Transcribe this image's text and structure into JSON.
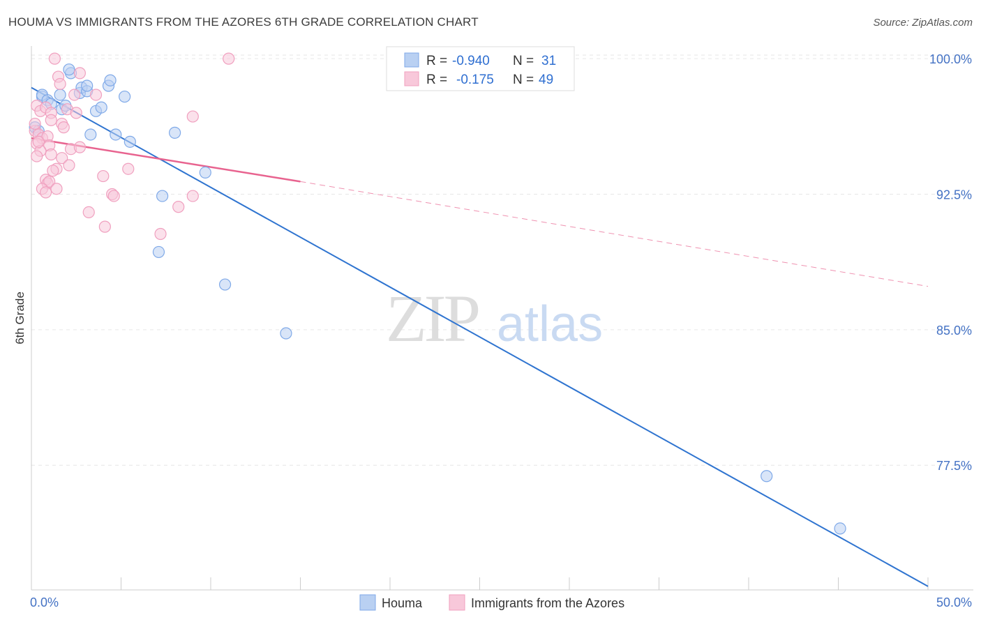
{
  "chart_data": {
    "type": "scatter",
    "title": "HOUMA VS IMMIGRANTS FROM THE AZORES 6TH GRADE CORRELATION CHART",
    "source": "Source: ZipAtlas.com",
    "ylabel": "6th Grade",
    "xlabel": "",
    "xlim": [
      0,
      50
    ],
    "ylim": [
      70.6,
      100.7
    ],
    "x_tick_labels": [
      "0.0%",
      "50.0%"
    ],
    "y_ticks": [
      {
        "value": 100.0,
        "label": "100.0%"
      },
      {
        "value": 92.5,
        "label": "92.5%"
      },
      {
        "value": 85.0,
        "label": "85.0%"
      },
      {
        "value": 77.5,
        "label": "77.5%"
      }
    ],
    "x_minor_ticks": [
      0,
      5,
      10,
      15,
      20,
      25,
      30,
      35,
      40,
      45,
      50
    ],
    "watermark": {
      "zip": "ZIP",
      "atlas": "atlas"
    },
    "legend": {
      "r_label": "R =",
      "n_label": "N =",
      "entries": [
        {
          "r": "-0.940",
          "n": "31"
        },
        {
          "r": "-0.175",
          "n": "49"
        }
      ]
    },
    "series": [
      {
        "name": "Houma",
        "color": "#7fa9e8",
        "fill": "#b9d0f2",
        "line_color": "#2f74d0",
        "trend": {
          "x0": 0.0,
          "y0": 98.4,
          "x1": 50.0,
          "y1": 70.8,
          "dashed_extension": false
        },
        "points": [
          [
            0.6,
            97.9
          ],
          [
            0.6,
            98.0
          ],
          [
            0.9,
            97.7
          ],
          [
            1.1,
            97.5
          ],
          [
            1.6,
            98.0
          ],
          [
            1.7,
            97.2
          ],
          [
            1.9,
            97.4
          ],
          [
            2.2,
            99.2
          ],
          [
            2.1,
            99.4
          ],
          [
            2.7,
            98.1
          ],
          [
            2.8,
            98.4
          ],
          [
            3.1,
            98.2
          ],
          [
            3.1,
            98.5
          ],
          [
            3.6,
            97.1
          ],
          [
            3.9,
            97.3
          ],
          [
            4.3,
            98.5
          ],
          [
            4.4,
            98.8
          ],
          [
            5.2,
            97.9
          ],
          [
            3.3,
            95.8
          ],
          [
            4.7,
            95.8
          ],
          [
            5.5,
            95.4
          ],
          [
            8.0,
            95.9
          ],
          [
            7.3,
            92.4
          ],
          [
            7.1,
            89.3
          ],
          [
            9.7,
            93.7
          ],
          [
            10.8,
            87.5
          ],
          [
            14.2,
            84.8
          ],
          [
            41.0,
            76.9
          ],
          [
            45.1,
            74.0
          ],
          [
            0.2,
            96.2
          ],
          [
            0.4,
            96.0
          ]
        ]
      },
      {
        "name": "Immigrants from the Azores",
        "color": "#f0a0bf",
        "fill": "#f8c8da",
        "line_color": "#e8638f",
        "trend": {
          "x0": 0.0,
          "y0": 95.6,
          "x1": 15.0,
          "y1": 93.2,
          "x2": 50.0,
          "y2": 87.4,
          "dashed_extension": true
        },
        "points": [
          [
            1.3,
            100.0
          ],
          [
            11.0,
            100.0
          ],
          [
            2.7,
            99.2
          ],
          [
            1.5,
            99.0
          ],
          [
            1.6,
            98.6
          ],
          [
            2.4,
            98.0
          ],
          [
            0.3,
            97.4
          ],
          [
            0.5,
            97.1
          ],
          [
            0.8,
            97.3
          ],
          [
            1.1,
            97.0
          ],
          [
            2.0,
            97.2
          ],
          [
            1.7,
            96.4
          ],
          [
            1.8,
            96.2
          ],
          [
            0.2,
            96.0
          ],
          [
            0.4,
            95.8
          ],
          [
            0.6,
            95.6
          ],
          [
            0.9,
            95.7
          ],
          [
            1.0,
            95.2
          ],
          [
            0.3,
            95.3
          ],
          [
            0.5,
            94.9
          ],
          [
            0.3,
            94.6
          ],
          [
            1.1,
            94.7
          ],
          [
            1.7,
            94.5
          ],
          [
            2.1,
            94.1
          ],
          [
            1.4,
            93.9
          ],
          [
            1.2,
            93.8
          ],
          [
            2.2,
            95.0
          ],
          [
            2.7,
            95.1
          ],
          [
            0.8,
            93.3
          ],
          [
            0.9,
            93.1
          ],
          [
            1.0,
            93.2
          ],
          [
            1.4,
            92.8
          ],
          [
            0.6,
            92.8
          ],
          [
            0.8,
            92.6
          ],
          [
            4.0,
            93.5
          ],
          [
            5.4,
            93.9
          ],
          [
            4.5,
            92.5
          ],
          [
            4.6,
            92.4
          ],
          [
            3.2,
            91.5
          ],
          [
            4.1,
            90.7
          ],
          [
            7.2,
            90.3
          ],
          [
            8.2,
            91.8
          ],
          [
            9.0,
            92.4
          ],
          [
            9.0,
            96.8
          ],
          [
            0.2,
            96.4
          ],
          [
            2.5,
            97.0
          ],
          [
            3.6,
            98.0
          ],
          [
            0.4,
            95.4
          ],
          [
            1.1,
            96.6
          ]
        ]
      }
    ]
  }
}
